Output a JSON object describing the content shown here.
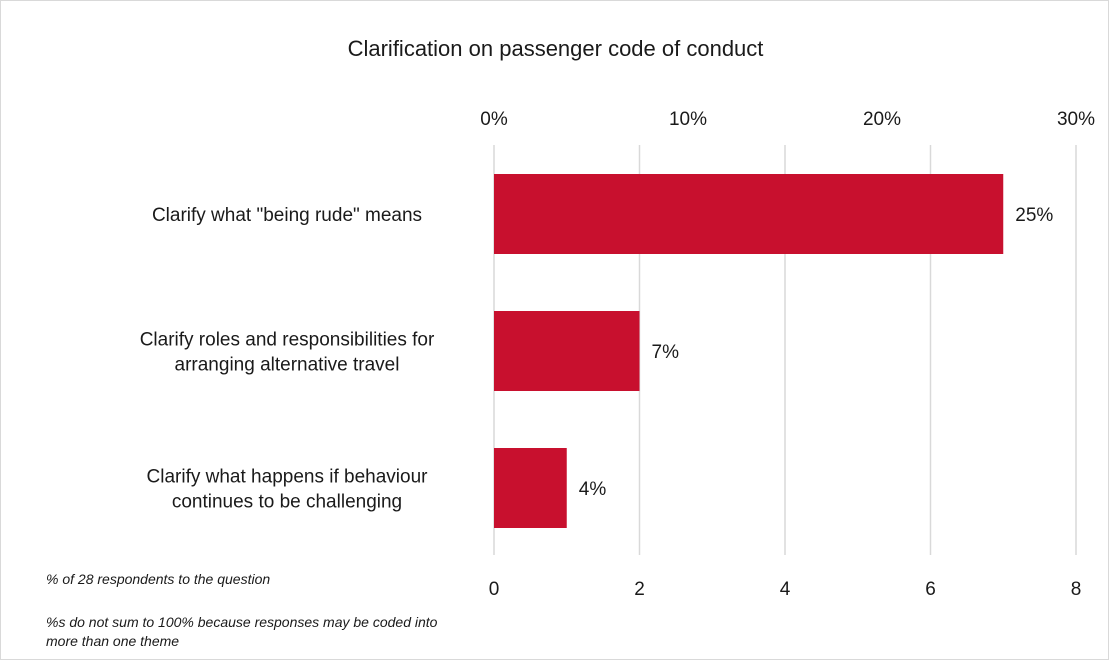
{
  "chart_data": {
    "type": "bar",
    "orientation": "horizontal",
    "title": "Clarification on passenger code of conduct",
    "categories": [
      [
        "Clarify what \"being rude\" means"
      ],
      [
        "Clarify roles and responsibilities for",
        "arranging alternative travel"
      ],
      [
        "Clarify what happens if behaviour",
        "continues to be challenging"
      ]
    ],
    "values": [
      7,
      2,
      1
    ],
    "data_labels": [
      "25%",
      "7%",
      "4%"
    ],
    "xlim": [
      0,
      8
    ],
    "bottom_axis_ticks": [
      "0",
      "2",
      "4",
      "6",
      "8"
    ],
    "top_axis_ticks": [
      "0%",
      "10%",
      "20%",
      "30%"
    ],
    "top_axis_range_percent": [
      0,
      30
    ],
    "grid": true,
    "bar_color": "#c8102e",
    "gridline_color": "#d9d9d9"
  },
  "notes": {
    "respondents": "% of 28 respondents to the question",
    "sum_disclaimer": "%s do not sum to 100% because responses may be coded into more than one theme"
  }
}
